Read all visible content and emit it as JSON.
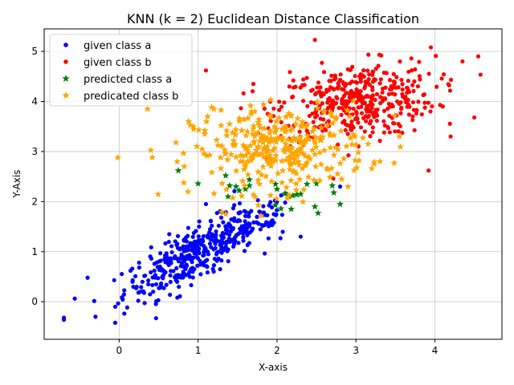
{
  "chart_data": {
    "type": "scatter",
    "title": "KNN (k = 2) Euclidean Distance Classification",
    "xlabel": "X-axis",
    "ylabel": "Y-Axis",
    "xlim": [
      -0.95,
      4.85
    ],
    "ylim": [
      -0.75,
      5.45
    ],
    "xticks": [
      0,
      1,
      2,
      3,
      4
    ],
    "yticks": [
      0,
      1,
      2,
      3,
      4,
      5
    ],
    "grid": true,
    "legend_position": "top-left",
    "series": [
      {
        "name": "given class a",
        "marker": "dot",
        "color": "#0000ff",
        "clusters": [
          {
            "cx": 0.9,
            "cy": 0.9,
            "sx": 0.42,
            "sy": 0.42,
            "n": 330,
            "corr": 0.78
          },
          {
            "cx": 1.6,
            "cy": 1.5,
            "sx": 0.32,
            "sy": 0.3,
            "n": 90,
            "corr": 0.6
          }
        ],
        "points": [
          [
            -0.7,
            -0.32
          ],
          [
            -0.7,
            -0.36
          ],
          [
            -0.4,
            0.48
          ],
          [
            -0.3,
            -0.3
          ],
          [
            -0.05,
            -0.42
          ],
          [
            -0.05,
            -0.1
          ],
          [
            1.1,
            1.95
          ],
          [
            2.8,
            2.3
          ],
          [
            2.3,
            1.3
          ],
          [
            2.0,
            2.0
          ]
        ]
      },
      {
        "name": "given class b",
        "marker": "dot",
        "color": "#ff0000",
        "clusters": [
          {
            "cx": 3.0,
            "cy": 4.0,
            "sx": 0.5,
            "sy": 0.38,
            "n": 420,
            "corr": 0.2
          }
        ],
        "points": [
          [
            4.55,
            4.9
          ],
          [
            4.35,
            4.8
          ],
          [
            4.5,
            3.68
          ],
          [
            4.2,
            3.3
          ],
          [
            1.1,
            4.62
          ],
          [
            1.7,
            4.35
          ],
          [
            2.48,
            5.23
          ],
          [
            3.95,
            5.08
          ],
          [
            3.92,
            2.62
          ],
          [
            4.1,
            3.9
          ]
        ]
      },
      {
        "name": "predicted class a",
        "marker": "star",
        "color": "#008000",
        "points": [
          [
            0.75,
            2.62
          ],
          [
            1.0,
            2.36
          ],
          [
            1.35,
            2.52
          ],
          [
            1.4,
            2.32
          ],
          [
            1.48,
            2.3
          ],
          [
            1.52,
            2.22
          ],
          [
            1.38,
            2.1
          ],
          [
            1.6,
            2.25
          ],
          [
            1.65,
            2.32
          ],
          [
            1.65,
            2.44
          ],
          [
            1.98,
            2.35
          ],
          [
            2.0,
            2.25
          ],
          [
            1.98,
            1.93
          ],
          [
            2.05,
            1.86
          ],
          [
            2.1,
            2.16
          ],
          [
            2.15,
            2.1
          ],
          [
            2.18,
            1.85
          ],
          [
            2.2,
            2.12
          ],
          [
            2.25,
            2.14
          ],
          [
            2.3,
            2.15
          ],
          [
            2.38,
            2.35
          ],
          [
            2.5,
            2.36
          ],
          [
            2.48,
            1.9
          ],
          [
            2.52,
            1.77
          ],
          [
            2.7,
            2.32
          ],
          [
            2.72,
            2.18
          ],
          [
            2.8,
            1.95
          ]
        ]
      },
      {
        "name": "predicated class b",
        "marker": "star",
        "color": "#ffa500",
        "clusters": [
          {
            "cx": 2.05,
            "cy": 3.05,
            "sx": 0.55,
            "sy": 0.42,
            "n": 330,
            "corr": 0.15
          }
        ],
        "points": [
          [
            0.36,
            3.85
          ],
          [
            0.42,
            2.88
          ],
          [
            0.72,
            3.18
          ],
          [
            0.88,
            3.6
          ],
          [
            1.05,
            3.05
          ],
          [
            1.12,
            3.7
          ],
          [
            1.2,
            3.85
          ],
          [
            3.2,
            2.66
          ],
          [
            3.55,
            3.3
          ],
          [
            2.9,
            2.3
          ],
          [
            2.82,
            2.45
          ]
        ]
      }
    ]
  }
}
